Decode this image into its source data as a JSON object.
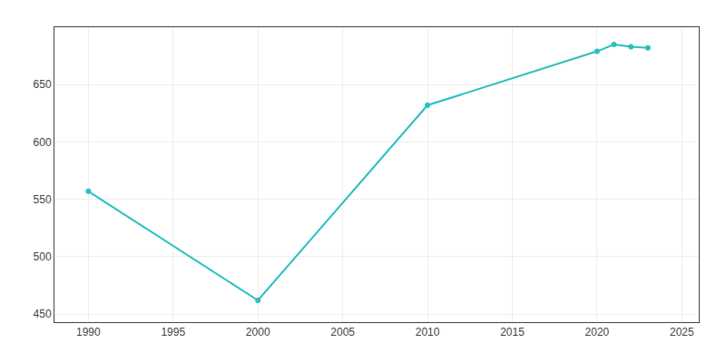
{
  "chart_data": {
    "type": "line",
    "x": [
      1990,
      2000,
      2010,
      2020,
      2021,
      2022,
      2023
    ],
    "values": [
      557,
      462,
      632,
      679,
      685,
      683,
      682
    ],
    "color": "#2BBFBF",
    "marker": "circle",
    "xlim": [
      1988,
      2026
    ],
    "ylim": [
      443,
      700
    ],
    "xticks": [
      1990,
      1995,
      2000,
      2005,
      2010,
      2015,
      2020,
      2025
    ],
    "yticks": [
      450,
      500,
      550,
      600,
      650
    ],
    "grid": true
  }
}
